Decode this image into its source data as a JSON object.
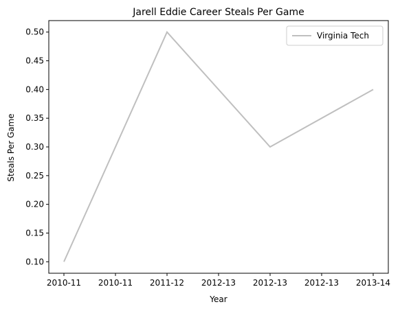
{
  "chart_data": {
    "type": "line",
    "title": "Jarell Eddie Career Steals Per Game",
    "xlabel": "Year",
    "ylabel": "Steals Per Game",
    "x_tick_labels": [
      "2010-11",
      "2010-11",
      "2011-12",
      "2012-13",
      "2012-13",
      "2012-13",
      "2013-14"
    ],
    "y_ticks": [
      0.1,
      0.15,
      0.2,
      0.25,
      0.3,
      0.35,
      0.4,
      0.45,
      0.5
    ],
    "y_tick_labels": [
      "0.10",
      "0.15",
      "0.20",
      "0.25",
      "0.30",
      "0.35",
      "0.40",
      "0.45",
      "0.50"
    ],
    "ylim": [
      0.08,
      0.52
    ],
    "series": [
      {
        "name": "Virginia Tech",
        "color": "#bfbfbf",
        "x": [
          "2010-11",
          "2011-12",
          "2012-13",
          "2013-14"
        ],
        "values": [
          0.1,
          0.5,
          0.3,
          0.4
        ]
      }
    ],
    "legend": {
      "placement": "upper-right"
    },
    "grid": false
  }
}
